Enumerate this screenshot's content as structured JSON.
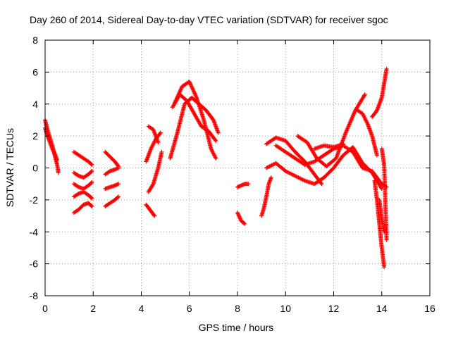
{
  "chart_data": {
    "type": "scatter",
    "title": "Day 260 of 2014, Sidereal Day-to-day VTEC variation (SDTVAR) for receiver sgoc",
    "xlabel": "GPS time / hours",
    "ylabel": "SDTVAR / TECUs",
    "xlim": [
      0,
      16
    ],
    "ylim": [
      -8,
      8
    ],
    "xticks": [
      "0",
      "2",
      "4",
      "6",
      "8",
      "10",
      "12",
      "14",
      "16"
    ],
    "yticks": [
      "-8",
      "-6",
      "-4",
      "-2",
      "0",
      "2",
      "4",
      "6",
      "8"
    ],
    "grid": true,
    "marker": "plus",
    "color": "#ff0000",
    "series": [
      {
        "x": [
          0.0,
          0.1,
          0.2,
          0.3,
          0.4,
          0.5,
          0.55
        ],
        "y": [
          3.0,
          2.4,
          1.9,
          1.4,
          0.8,
          0.2,
          -0.3
        ]
      },
      {
        "x": [
          0.0,
          0.1,
          0.2,
          0.3,
          0.4,
          0.5
        ],
        "y": [
          2.5,
          2.0,
          1.6,
          1.2,
          0.9,
          0.5
        ]
      },
      {
        "x": [
          1.2,
          1.4,
          1.6,
          1.8,
          1.95
        ],
        "y": [
          1.0,
          0.8,
          0.6,
          0.4,
          0.2
        ]
      },
      {
        "x": [
          1.2,
          1.4,
          1.6,
          1.8,
          1.95
        ],
        "y": [
          -0.3,
          -0.5,
          -0.6,
          -0.4,
          -0.2
        ]
      },
      {
        "x": [
          1.2,
          1.4,
          1.6,
          1.8,
          1.95
        ],
        "y": [
          -1.0,
          -1.2,
          -1.3,
          -1.1,
          -0.9
        ]
      },
      {
        "x": [
          1.2,
          1.4,
          1.6,
          1.8,
          1.95
        ],
        "y": [
          -1.8,
          -1.6,
          -1.5,
          -1.7,
          -1.9
        ]
      },
      {
        "x": [
          1.2,
          1.4,
          1.6,
          1.8,
          1.95
        ],
        "y": [
          -2.8,
          -2.6,
          -2.3,
          -2.2,
          -2.4
        ]
      },
      {
        "x": [
          2.5,
          2.7,
          2.9,
          3.05
        ],
        "y": [
          1.0,
          0.7,
          0.4,
          0.1
        ]
      },
      {
        "x": [
          2.5,
          2.7,
          2.9,
          3.05
        ],
        "y": [
          -0.4,
          -0.2,
          -0.1,
          0.0
        ]
      },
      {
        "x": [
          2.5,
          2.7,
          2.9,
          3.05
        ],
        "y": [
          -1.3,
          -1.2,
          -1.1,
          -1.0
        ]
      },
      {
        "x": [
          2.5,
          2.7,
          2.9,
          3.05
        ],
        "y": [
          -2.4,
          -2.2,
          -2.0,
          -1.8
        ]
      },
      {
        "x": [
          4.2,
          4.3,
          4.4,
          4.5,
          4.55
        ],
        "y": [
          -2.3,
          -2.5,
          -2.7,
          -2.9,
          -3.0
        ]
      },
      {
        "x": [
          4.3,
          4.5,
          4.7,
          4.85
        ],
        "y": [
          -1.5,
          -1.0,
          0.0,
          1.0
        ]
      },
      {
        "x": [
          4.2,
          4.4,
          4.6,
          4.8
        ],
        "y": [
          0.4,
          1.2,
          1.8,
          2.2
        ]
      },
      {
        "x": [
          4.3,
          4.5,
          4.7
        ],
        "y": [
          2.6,
          2.4,
          1.6
        ]
      },
      {
        "x": [
          5.2,
          5.5,
          5.8,
          6.1,
          6.4,
          6.7,
          7.0,
          7.2
        ],
        "y": [
          0.6,
          2.2,
          4.0,
          4.4,
          4.0,
          3.6,
          3.0,
          2.2
        ]
      },
      {
        "x": [
          5.4,
          5.7,
          6.0,
          6.3,
          6.6,
          6.9,
          7.1
        ],
        "y": [
          4.1,
          5.1,
          5.4,
          4.4,
          3.0,
          1.2,
          0.6
        ]
      },
      {
        "x": [
          5.3,
          5.6,
          5.9,
          6.2,
          6.5,
          6.8,
          7.1
        ],
        "y": [
          3.8,
          4.6,
          4.2,
          3.4,
          2.6,
          2.3,
          1.7
        ]
      },
      {
        "x": [
          8.0,
          8.15,
          8.3,
          8.45
        ],
        "y": [
          -1.2,
          -1.1,
          -1.0,
          -1.0
        ]
      },
      {
        "x": [
          8.0,
          8.15,
          8.3
        ],
        "y": [
          -2.8,
          -3.3,
          -3.5
        ]
      },
      {
        "x": [
          9.0,
          9.1,
          9.2,
          9.3,
          9.4
        ],
        "y": [
          -3.0,
          -2.5,
          -1.8,
          -1.0,
          -0.6
        ]
      },
      {
        "x": [
          9.2,
          9.6,
          10.0,
          10.4,
          10.8,
          11.2,
          11.5
        ],
        "y": [
          1.5,
          1.9,
          1.7,
          1.0,
          0.4,
          -0.4,
          -1.0
        ]
      },
      {
        "x": [
          9.2,
          9.6,
          10.0,
          10.4,
          10.8,
          11.2,
          11.6,
          12.0,
          12.4,
          12.8,
          13.2,
          13.6,
          14.0
        ],
        "y": [
          0.0,
          0.3,
          -0.2,
          -0.5,
          -0.8,
          -1.0,
          -0.6,
          0.0,
          0.8,
          1.3,
          0.3,
          -0.3,
          -1.3
        ]
      },
      {
        "x": [
          9.6,
          10.0,
          10.4,
          10.8,
          11.2,
          11.6,
          12.0,
          12.4,
          12.8,
          13.2,
          13.6,
          14.0,
          14.2
        ],
        "y": [
          1.4,
          1.0,
          0.6,
          0.2,
          0.4,
          0.8,
          1.2,
          1.4,
          1.0,
          0.0,
          -0.2,
          -1.0,
          -1.2
        ]
      },
      {
        "x": [
          10.5,
          10.9,
          11.3,
          11.7,
          12.1,
          12.5,
          12.9,
          13.3
        ],
        "y": [
          2.0,
          1.6,
          0.6,
          0.1,
          0.6,
          2.2,
          3.6,
          4.6
        ]
      },
      {
        "x": [
          11.2,
          11.6,
          12.0,
          12.4
        ],
        "y": [
          1.2,
          1.4,
          1.3,
          1.5
        ]
      },
      {
        "x": [
          13.0,
          13.2,
          13.4,
          13.6,
          13.8
        ],
        "y": [
          3.6,
          3.4,
          2.8,
          2.0,
          0.8
        ]
      },
      {
        "x": [
          13.6,
          13.8,
          14.0,
          14.1,
          14.2
        ],
        "y": [
          3.2,
          3.6,
          4.4,
          5.3,
          6.2
        ]
      },
      {
        "x": [
          13.7,
          13.8,
          13.9,
          14.0,
          14.1
        ],
        "y": [
          -0.8,
          -2.0,
          -3.5,
          -5.0,
          -6.2
        ]
      },
      {
        "x": [
          14.0,
          14.1,
          14.2
        ],
        "y": [
          1.2,
          0.2,
          -4.5
        ]
      },
      {
        "x": [
          13.9,
          14.0,
          14.1
        ],
        "y": [
          -2.0,
          -3.2,
          -4.0
        ]
      }
    ]
  }
}
